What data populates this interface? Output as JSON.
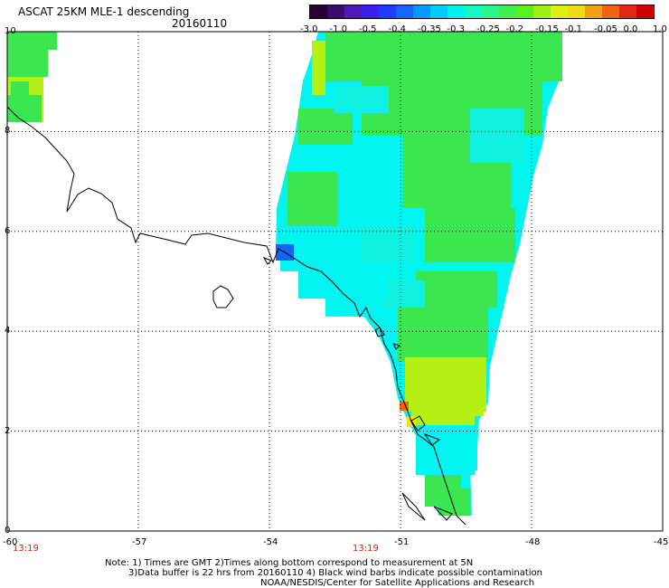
{
  "header": {
    "title": "ASCAT 25KM MLE-1 descending",
    "date": "20160110"
  },
  "colorbar": {
    "tick_labels": [
      "-3.0",
      "-1.0",
      "-0.5",
      "-0.4",
      "-0.35",
      "-0.3",
      "-0.25",
      "-0.2",
      "-0.15",
      "-0.1",
      "-0.05",
      "0.0",
      "1.0"
    ],
    "colors": [
      "#2a0033",
      "#3c0c6e",
      "#4f19b9",
      "#3b20e8",
      "#1e3cff",
      "#1266ff",
      "#0899ff",
      "#00ccff",
      "#00f0f0",
      "#16f5c4",
      "#2af58a",
      "#3ef050",
      "#5af020",
      "#9cf014",
      "#dcf014",
      "#f0dc14",
      "#f0a014",
      "#f06414",
      "#e02814",
      "#cc0000"
    ]
  },
  "axes": {
    "x_ticks": [
      "-60",
      "-57",
      "-54",
      "-51",
      "-48",
      "-45"
    ],
    "y_ticks": [
      "0",
      "2",
      "4",
      "6",
      "8",
      "10"
    ],
    "lon_range": [
      -60,
      -45
    ],
    "lat_range": [
      0,
      10
    ]
  },
  "times": [
    "13:19",
    "13:19"
  ],
  "notes": {
    "line1": "Note: 1) Times are GMT 2)Times along bottom correspond to measurement at 5N",
    "line2": "3)Data buffer is 22 hrs from 20160110 4) Black wind barbs indicate possible contamination",
    "line3": "NOAA/NESDIS/Center for Satellite Applications and Research"
  },
  "palette": {
    "green": "#3ce650",
    "aqua_green": "#1ef5a0",
    "cyan": "#00f5f0",
    "light_cyan": "#10f0e0",
    "yellow_green": "#b4f014",
    "yellow": "#f0e614",
    "orange": "#f06414",
    "blue": "#1464f0"
  }
}
